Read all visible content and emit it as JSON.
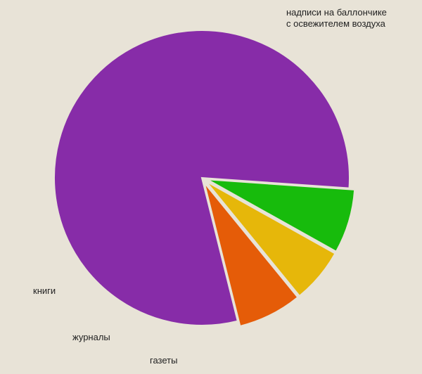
{
  "chart_data": {
    "type": "pie",
    "title": "",
    "slices": [
      {
        "label": "надписи на баллончике с освежителем воздуха",
        "value": 80,
        "color": "#872ca8",
        "exploded": false
      },
      {
        "label": "газеты",
        "value": 7,
        "color": "#17bb0c",
        "exploded": true
      },
      {
        "label": "журналы",
        "value": 6,
        "color": "#e6b70a",
        "exploded": true
      },
      {
        "label": "книги",
        "value": 7,
        "color": "#e55c08",
        "exploded": true
      }
    ],
    "annotation_lines": [
      "надписи на баллончике",
      "с освежителем воздуха"
    ],
    "legend": "none"
  }
}
